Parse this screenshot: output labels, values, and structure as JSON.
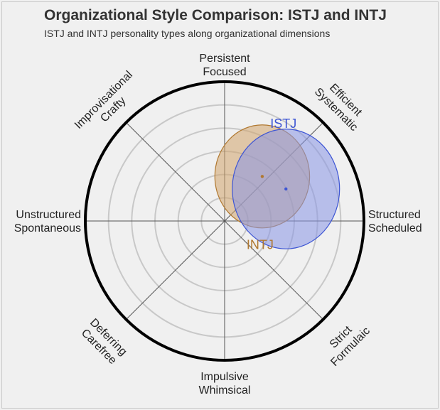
{
  "header": {
    "title": "Organizational Style Comparison: ISTJ and INTJ",
    "subtitle": "ISTJ and INTJ personality types along organizational dimensions"
  },
  "chart_data": {
    "type": "scatter",
    "title": "Organizational Style Comparison: ISTJ and INTJ",
    "subtitle": "ISTJ and INTJ personality types along organizational dimensions",
    "axes": [
      {
        "angle_deg": 90,
        "lines": [
          "Persistent",
          "Focused"
        ]
      },
      {
        "angle_deg": 45,
        "lines": [
          "Efficient",
          "Systematic"
        ]
      },
      {
        "angle_deg": 0,
        "lines": [
          "Structured",
          "Scheduled"
        ]
      },
      {
        "angle_deg": -45,
        "lines": [
          "Strict",
          "Formulaic"
        ]
      },
      {
        "angle_deg": -90,
        "lines": [
          "Impulsive",
          "Whimsical"
        ]
      },
      {
        "angle_deg": -135,
        "lines": [
          "Deferring",
          "Carefree"
        ]
      },
      {
        "angle_deg": 180,
        "lines": [
          "Unstructured",
          "Spontaneous"
        ]
      },
      {
        "angle_deg": 135,
        "lines": [
          "Improvisational",
          "Crafty"
        ]
      }
    ],
    "rings": 5,
    "range": [
      -1,
      1
    ],
    "grid": true,
    "series": [
      {
        "name": "INTJ",
        "color": "#b07830",
        "fill": "#d2a46c",
        "center": [
          0.27,
          0.32
        ],
        "radius": [
          0.68,
          0.74
        ]
      },
      {
        "name": "ISTJ",
        "color": "#3d55d4",
        "fill": "#8896e6",
        "center": [
          0.44,
          0.23
        ],
        "radius": [
          0.77,
          0.86
        ]
      }
    ]
  }
}
